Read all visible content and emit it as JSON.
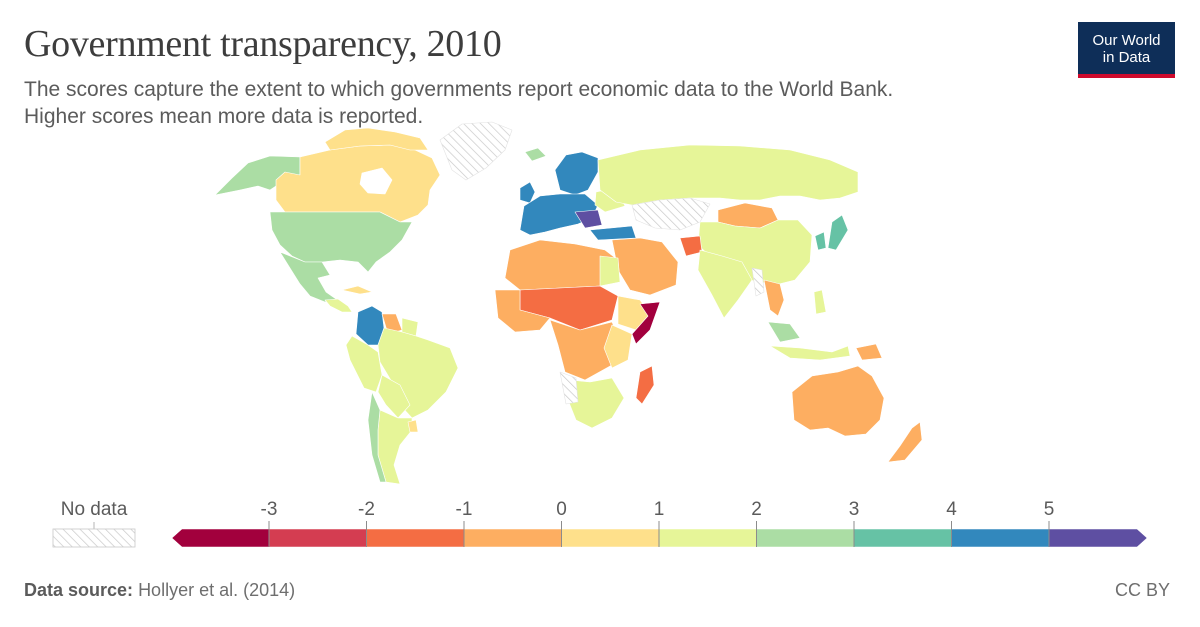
{
  "header": {
    "title": "Government transparency, 2010",
    "subtitle_line1": "The scores capture the extent to which governments report economic data to the World Bank.",
    "subtitle_line2": "Higher scores mean more data is reported."
  },
  "logo": {
    "line1": "Our World",
    "line2": "in Data",
    "bg_color": "#0e2e58",
    "accent_color": "#cf0a2c"
  },
  "legend": {
    "no_data_label": "No data",
    "ticks": [
      "-3",
      "-2",
      "-1",
      "0",
      "1",
      "2",
      "3",
      "4",
      "5"
    ],
    "bins": [
      {
        "range": "< -3",
        "color": "#a2003d"
      },
      {
        "range": "-3 to -2",
        "color": "#d43d51"
      },
      {
        "range": "-2 to -1",
        "color": "#f46d43"
      },
      {
        "range": "-1 to 0",
        "color": "#fdae61"
      },
      {
        "range": "0 to 1",
        "color": "#fee08b"
      },
      {
        "range": "1 to 2",
        "color": "#e6f598"
      },
      {
        "range": "2 to 3",
        "color": "#abdda4"
      },
      {
        "range": "3 to 4",
        "color": "#66c2a5"
      },
      {
        "range": "4 to 5",
        "color": "#3288bd"
      },
      {
        "range": "> 5",
        "color": "#5e4fa2"
      }
    ]
  },
  "footer": {
    "source_label": "Data source:",
    "source_text": "Hollyer et al. (2014)",
    "license": "CC BY"
  }
}
